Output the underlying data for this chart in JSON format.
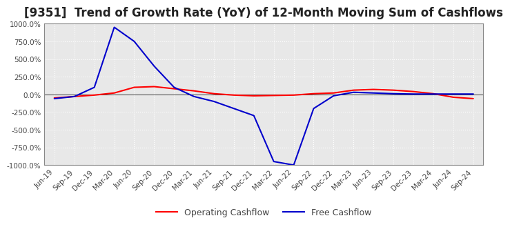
{
  "title": "[9351]  Trend of Growth Rate (YoY) of 12-Month Moving Sum of Cashflows",
  "title_fontsize": 12,
  "ylim": [
    -1000,
    1000
  ],
  "yticks": [
    -1000,
    -750,
    -500,
    -250,
    0,
    250,
    500,
    750,
    1000
  ],
  "background_color": "#ffffff",
  "plot_bg_color": "#e8e8e8",
  "grid_color": "#ffffff",
  "legend_labels": [
    "Operating Cashflow",
    "Free Cashflow"
  ],
  "legend_colors": [
    "#ff0000",
    "#0000cc"
  ],
  "x_labels": [
    "Jun-19",
    "Sep-19",
    "Dec-19",
    "Mar-20",
    "Jun-20",
    "Sep-20",
    "Dec-20",
    "Mar-21",
    "Jun-21",
    "Sep-21",
    "Dec-21",
    "Mar-22",
    "Jun-22",
    "Sep-22",
    "Dec-22",
    "Mar-23",
    "Jun-23",
    "Sep-23",
    "Dec-23",
    "Mar-24",
    "Jun-24",
    "Sep-24"
  ],
  "operating_cf": [
    -50,
    -30,
    -10,
    20,
    100,
    110,
    80,
    50,
    10,
    -10,
    -20,
    -15,
    -10,
    10,
    20,
    60,
    70,
    60,
    40,
    10,
    -40,
    -60
  ],
  "free_cf": [
    -60,
    -30,
    100,
    950,
    750,
    400,
    100,
    -30,
    -100,
    -200,
    -300,
    -950,
    -1000,
    -200,
    -20,
    30,
    20,
    10,
    5,
    5,
    5,
    5
  ]
}
